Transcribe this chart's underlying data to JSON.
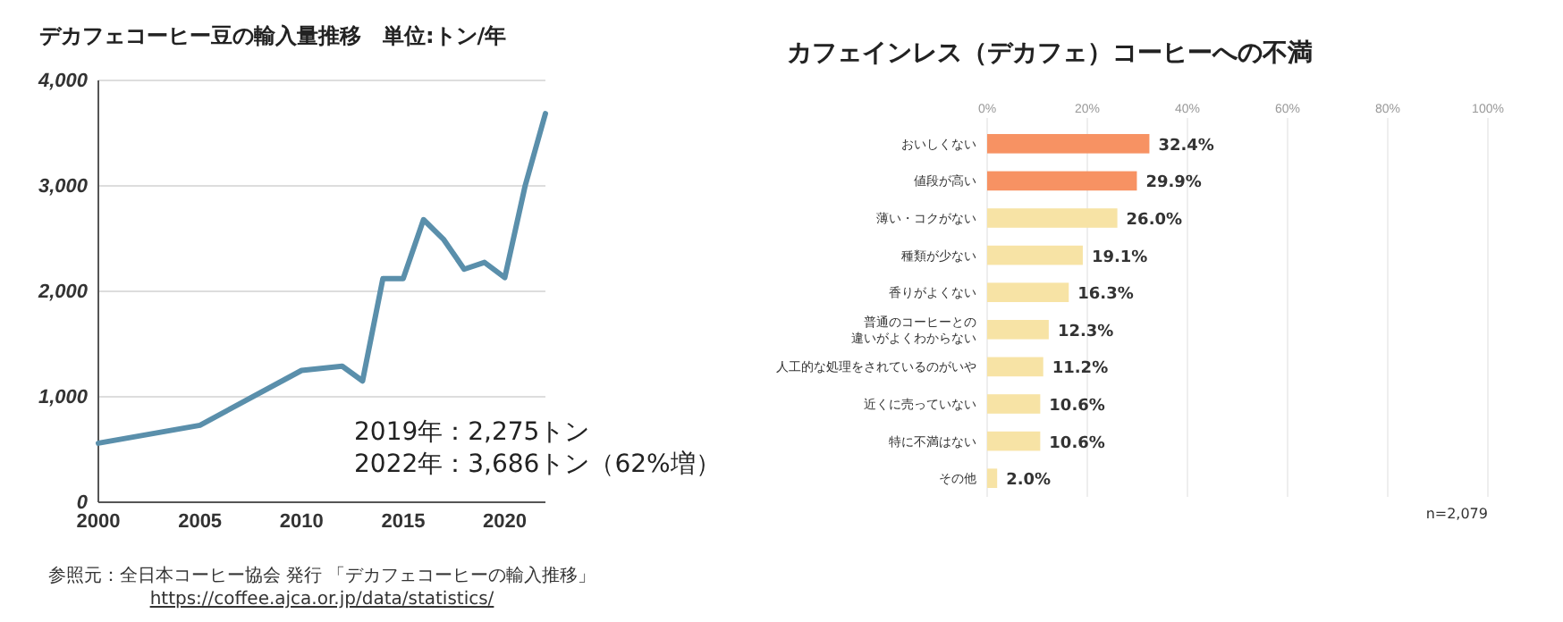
{
  "chart_data": [
    {
      "type": "line",
      "title": "デカフェコーヒー豆の輸入量推移　単位:トン/年",
      "x": [
        2000,
        2005,
        2010,
        2012,
        2013,
        2014,
        2015,
        2016,
        2017,
        2018,
        2019,
        2020,
        2021,
        2022
      ],
      "series": [
        {
          "color": "#5a8fab",
          "values": [
            560,
            730,
            1250,
            1290,
            1150,
            2120,
            2120,
            2680,
            2490,
            2210,
            2275,
            2130,
            3000,
            3686
          ]
        }
      ],
      "xlim": [
        2000,
        2022
      ],
      "xticks": [
        2000,
        2005,
        2010,
        2015,
        2020
      ],
      "ylim": [
        0,
        4000
      ],
      "yticks": [
        0,
        {
          "value": 1000,
          "label": "1,000"
        },
        {
          "value": 2000,
          "label": "2,000"
        },
        {
          "value": 3000,
          "label": "3,000"
        },
        {
          "value": 4000,
          "label": "4,000"
        }
      ],
      "grid": "y",
      "marker": "none",
      "line_style": "solid",
      "annotations": [
        "2019年：2,275トン",
        "2022年：3,686トン（62%増）",
        "参照元：全日本コーヒー協会 発行 「デカフェコーヒーの輸入推移」",
        "https://coffee.ajca.or.jp/data/statistics/"
      ]
    },
    {
      "type": "bar",
      "orientation": "horizontal",
      "title": "カフェインレス（デカフェ）コーヒーへの不満",
      "categories": [
        "おいしくない",
        "値段が高い",
        "薄い・コクがない",
        "種類が少ない",
        "香りがよくない",
        "普通のコーヒーとの違いがよくわからない",
        "人工的な処理をされているのがいや",
        "近くに売っていない",
        "特に不満はない",
        "その他"
      ],
      "values": [
        32.4,
        29.9,
        26.0,
        19.1,
        16.3,
        12.3,
        11.2,
        10.6,
        10.6,
        2.0
      ],
      "colors": [
        "#f79263",
        "#f79263",
        "#f7e3a5",
        "#f7e3a5",
        "#f7e3a5",
        "#f7e3a5",
        "#f7e3a5",
        "#f7e3a5",
        "#f7e3a5",
        "#f7e3a5"
      ],
      "value_labels": [
        "32.4%",
        "29.9%",
        "26.0%",
        "19.1%",
        "16.3%",
        "12.3%",
        "11.2%",
        "10.6%",
        "10.6%",
        "2.0%"
      ],
      "xlim": [
        0,
        100
      ],
      "xticks": [
        {
          "value": 0,
          "label": "0%"
        },
        {
          "value": 20,
          "label": "20%"
        },
        {
          "value": 40,
          "label": "40%"
        },
        {
          "value": 60,
          "label": "60%"
        },
        {
          "value": 80,
          "label": "80%"
        },
        {
          "value": 100,
          "label": "100%"
        }
      ],
      "grid": "x",
      "annotations": [
        "n=2,079"
      ]
    }
  ]
}
